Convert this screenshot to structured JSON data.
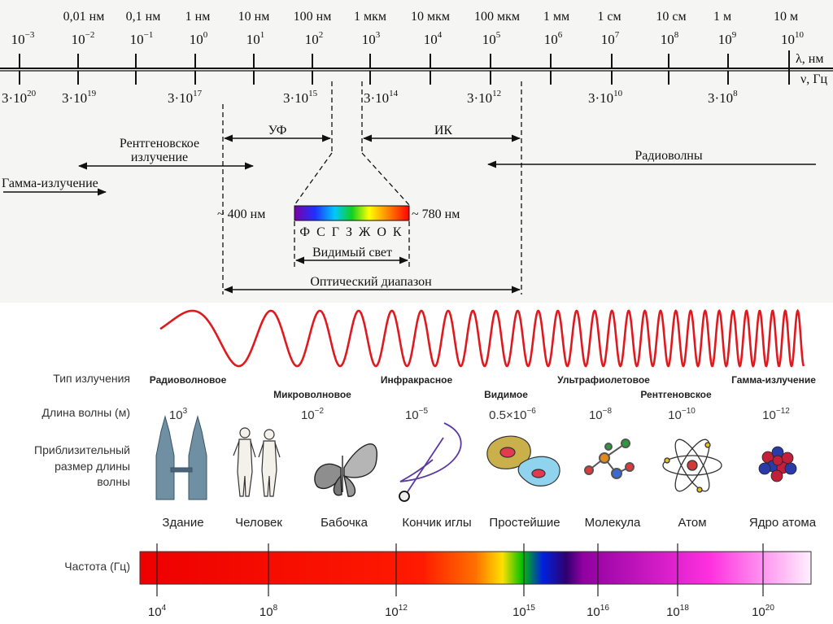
{
  "scale": {
    "wavelength_top": [
      "0,01 нм",
      "0,1 нм",
      "1 нм",
      "10 нм",
      "100 нм",
      "1 мкм",
      "10 мкм",
      "100 мкм",
      "1 мм",
      "1 см",
      "10 см",
      "1 м",
      "10 м"
    ],
    "power_labels": [
      {
        "base": "10",
        "exp": "−3"
      },
      {
        "base": "10",
        "exp": "−2"
      },
      {
        "base": "10",
        "exp": "−1"
      },
      {
        "base": "10",
        "exp": "0"
      },
      {
        "base": "10",
        "exp": "1"
      },
      {
        "base": "10",
        "exp": "2"
      },
      {
        "base": "10",
        "exp": "3"
      },
      {
        "base": "10",
        "exp": "4"
      },
      {
        "base": "10",
        "exp": "5"
      },
      {
        "base": "10",
        "exp": "6"
      },
      {
        "base": "10",
        "exp": "7"
      },
      {
        "base": "10",
        "exp": "8"
      },
      {
        "base": "10",
        "exp": "9"
      },
      {
        "base": "10",
        "exp": "10"
      }
    ],
    "lambda_unit": "λ, нм",
    "nu_unit": "ν, Гц",
    "frequency_labels": [
      {
        "base": "3·10",
        "exp": "20"
      },
      {
        "base": "3·10",
        "exp": "19"
      },
      {
        "base": "3·10",
        "exp": "17"
      },
      {
        "base": "3·10",
        "exp": "15"
      },
      {
        "base": "3·10",
        "exp": "14"
      },
      {
        "base": "3·10",
        "exp": "12"
      },
      {
        "base": "3·10",
        "exp": "10"
      },
      {
        "base": "3·10",
        "exp": "8"
      }
    ]
  },
  "bands": {
    "uv": "УФ",
    "ir": "ИК",
    "xray_line1": "Рентгеновское",
    "xray_line2": "излучение",
    "gamma": "Гамма-излучение",
    "radio": "Радиоволны",
    "nm400": "~ 400 нм",
    "nm780": "~ 780 нм",
    "spectrum_letters": "Ф С Г З Ж О К",
    "visible": "Видимый свет",
    "optical": "Оптический диапазон"
  },
  "lower": {
    "row_type_label": "Тип излучения",
    "row_wavelength_label": "Длина волны (м)",
    "row_size_label_1": "Приблизительный",
    "row_size_label_2": "размер длины",
    "row_size_label_3": "волны",
    "row_freq_label": "Частота (Гц)",
    "types": [
      "Радиоволновое",
      "Микроволновое",
      "Инфракрасное",
      "Видимое",
      "Ультрафиолетовое",
      "Рентгеновское",
      "Гамма-излучение"
    ],
    "wavelengths": [
      {
        "base": "10",
        "exp": "3"
      },
      {
        "base": "10",
        "exp": "−2"
      },
      {
        "base": "10",
        "exp": "−5"
      },
      {
        "base": "0.5×10",
        "exp": "−6"
      },
      {
        "base": "10",
        "exp": "−8"
      },
      {
        "base": "10",
        "exp": "−10"
      },
      {
        "base": "10",
        "exp": "−12"
      }
    ],
    "objects": [
      "Здание",
      "Человек",
      "Бабочка",
      "Кончик иглы",
      "Простейшие",
      "Молекула",
      "Атом",
      "Ядро атома"
    ],
    "freq_ticks": [
      {
        "base": "10",
        "exp": "4"
      },
      {
        "base": "10",
        "exp": "8"
      },
      {
        "base": "10",
        "exp": "12"
      },
      {
        "base": "10",
        "exp": "15"
      },
      {
        "base": "10",
        "exp": "16"
      },
      {
        "base": "10",
        "exp": "18"
      },
      {
        "base": "10",
        "exp": "20"
      }
    ]
  },
  "colors": {
    "wave": "#e0191f",
    "arrow": "#111111",
    "panel_top": "#f5f5f3"
  }
}
